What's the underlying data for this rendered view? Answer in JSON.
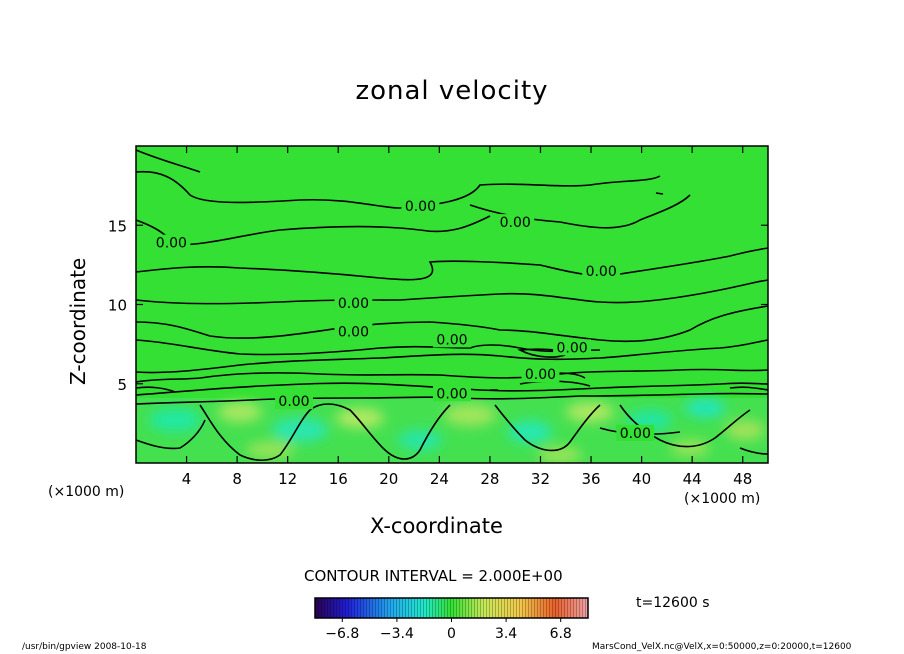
{
  "chart_data": {
    "type": "heatmap",
    "title": "zonal velocity",
    "xlabel": "X-coordinate",
    "ylabel": "Z-coordinate",
    "x_unit_left": "(×1000 m)",
    "x_unit_right": "(×1000 m)",
    "xlim": [
      0,
      50
    ],
    "ylim": [
      0,
      20
    ],
    "x_ticks": [
      4,
      8,
      12,
      16,
      20,
      24,
      28,
      32,
      36,
      40,
      44,
      48
    ],
    "y_ticks": [
      5,
      10,
      15
    ],
    "contour_interval": "CONTOUR INTERVAL = 2.000E+00",
    "contour_labels": [
      {
        "text": "0.00",
        "x": 22.5,
        "y": 16.2
      },
      {
        "text": "0.00",
        "x": 30.0,
        "y": 15.2
      },
      {
        "text": "0.00",
        "x": 2.8,
        "y": 13.9
      },
      {
        "text": "0.00",
        "x": 36.8,
        "y": 12.1
      },
      {
        "text": "0.00",
        "x": 17.2,
        "y": 10.1
      },
      {
        "text": "0.00",
        "x": 17.2,
        "y": 8.3
      },
      {
        "text": "0.00",
        "x": 25.0,
        "y": 7.8
      },
      {
        "text": "0.00",
        "x": 34.5,
        "y": 7.3
      },
      {
        "text": "0.00",
        "x": 32.0,
        "y": 5.6
      },
      {
        "text": "0.00",
        "x": 25.0,
        "y": 4.4
      },
      {
        "text": "0.00",
        "x": 12.5,
        "y": 3.9
      },
      {
        "text": "0.00",
        "x": 39.5,
        "y": 1.9
      }
    ],
    "colorbar": {
      "range": [
        -8.5,
        8.5
      ],
      "tick_labels": [
        "−6.8",
        "−3.4",
        "0",
        "3.4",
        "6.8"
      ],
      "tick_values": [
        -6.8,
        -3.4,
        0,
        3.4,
        6.8
      ]
    },
    "time_label": "t=12600 s"
  },
  "footer": {
    "left": "/usr/bin/gpview   2008-10-18",
    "right": "MarsCond_VelX.nc@VelX,x=0:50000,z=0:20000,t=12600"
  }
}
